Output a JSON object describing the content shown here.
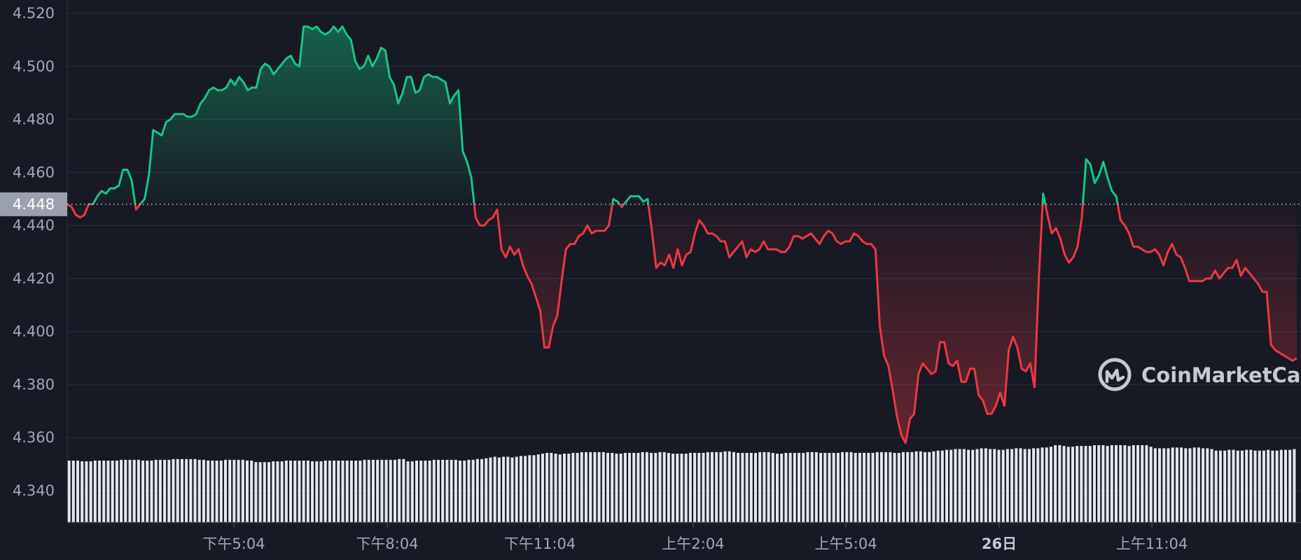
{
  "chart_data": {
    "type": "line",
    "title": "",
    "xlabel": "",
    "ylabel": "",
    "ylim": [
      4.335,
      4.522
    ],
    "grid": true,
    "legend": "none",
    "y_ticks": [
      "4.520",
      "4.500",
      "4.480",
      "4.460",
      "4.440",
      "4.420",
      "4.400",
      "4.380",
      "4.360",
      "4.340"
    ],
    "x_ticks": [
      {
        "label": "下午5:04",
        "bold": false
      },
      {
        "label": "下午8:04",
        "bold": false
      },
      {
        "label": "下午11:04",
        "bold": false
      },
      {
        "label": "上午2:04",
        "bold": false
      },
      {
        "label": "上午5:04",
        "bold": false
      },
      {
        "label": "26日",
        "bold": true
      },
      {
        "label": "上午11:04",
        "bold": false
      }
    ],
    "baseline": {
      "value": 4.448,
      "label": "4.448"
    },
    "colors": {
      "above": "#16c784",
      "below": "#ea3943",
      "volume": "#e6e8ee",
      "background": "#171924"
    },
    "series": [
      {
        "values": [
          4.448,
          4.447,
          4.444,
          4.443,
          4.444,
          4.448,
          4.448,
          4.451,
          4.453,
          4.452,
          4.454,
          4.454,
          4.455,
          4.461,
          4.461,
          4.457,
          4.446,
          4.448,
          4.45,
          4.459,
          4.476,
          4.475,
          4.474,
          4.479,
          4.48,
          4.482,
          4.482,
          4.482,
          4.481,
          4.481,
          4.482,
          4.486,
          4.488,
          4.491,
          4.492,
          4.491,
          4.491,
          4.492,
          4.495,
          4.493,
          4.496,
          4.494,
          4.491,
          4.492,
          4.492,
          4.499,
          4.501,
          4.5,
          4.497,
          4.499,
          4.501,
          4.503,
          4.504,
          4.501,
          4.5,
          4.515,
          4.515,
          4.514,
          4.515,
          4.513,
          4.512,
          4.513,
          4.515,
          4.513,
          4.515,
          4.512,
          4.51,
          4.502,
          4.499,
          4.5,
          4.504,
          4.5,
          4.503,
          4.507,
          4.506,
          4.496,
          4.493,
          4.486,
          4.49,
          4.496,
          4.496,
          4.49,
          4.491,
          4.496,
          4.497,
          4.496,
          4.496,
          4.495,
          4.494,
          4.486,
          4.489,
          4.491,
          4.468,
          4.464,
          4.458,
          4.443,
          4.44,
          4.44,
          4.442,
          4.443,
          4.446,
          4.431,
          4.428,
          4.432,
          4.429,
          4.431,
          4.425,
          4.421,
          4.418,
          4.413,
          4.408,
          4.394,
          4.394,
          4.402,
          4.406,
          4.419,
          4.431,
          4.433,
          4.433,
          4.436,
          4.437,
          4.44,
          4.437,
          4.438,
          4.438,
          4.438,
          4.44,
          4.45,
          4.449,
          4.447,
          4.449,
          4.451,
          4.451,
          4.451,
          4.449,
          4.45,
          4.438,
          4.424,
          4.426,
          4.425,
          4.429,
          4.424,
          4.431,
          4.425,
          4.429,
          4.43,
          4.437,
          4.442,
          4.44,
          4.437,
          4.437,
          4.436,
          4.434,
          4.434,
          4.428,
          4.43,
          4.432,
          4.434,
          4.428,
          4.431,
          4.43,
          4.431,
          4.434,
          4.431,
          4.431,
          4.431,
          4.43,
          4.43,
          4.432,
          4.436,
          4.436,
          4.435,
          4.436,
          4.437,
          4.435,
          4.433,
          4.436,
          4.438,
          4.437,
          4.434,
          4.433,
          4.434,
          4.434,
          4.437,
          4.436,
          4.434,
          4.433,
          4.433,
          4.431,
          4.402,
          4.391,
          4.387,
          4.378,
          4.368,
          4.361,
          4.358,
          4.367,
          4.369,
          4.384,
          4.388,
          4.386,
          4.384,
          4.385,
          4.396,
          4.396,
          4.388,
          4.387,
          4.389,
          4.381,
          4.381,
          4.386,
          4.386,
          4.376,
          4.374,
          4.369,
          4.369,
          4.372,
          4.377,
          4.372,
          4.393,
          4.398,
          4.394,
          4.386,
          4.385,
          4.388,
          4.379,
          4.42,
          4.452,
          4.444,
          4.437,
          4.439,
          4.435,
          4.429,
          4.426,
          4.428,
          4.432,
          4.443,
          4.465,
          4.463,
          4.456,
          4.459,
          4.464,
          4.458,
          4.453,
          4.451,
          4.442,
          4.44,
          4.437,
          4.432,
          4.432,
          4.431,
          4.43,
          4.43,
          4.431,
          4.429,
          4.425,
          4.43,
          4.433,
          4.429,
          4.428,
          4.424,
          4.419,
          4.419,
          4.419,
          4.419,
          4.42,
          4.42,
          4.423,
          4.42,
          4.422,
          4.424,
          4.424,
          4.427,
          4.421,
          4.424,
          4.422,
          4.42,
          4.418,
          4.415,
          4.415,
          4.395,
          4.393,
          4.392,
          4.391,
          4.39,
          4.389,
          4.39
        ]
      }
    ],
    "volume_relative": [
      0.8,
      0.8,
      0.8,
      0.79,
      0.79,
      0.79,
      0.8,
      0.8,
      0.8,
      0.8,
      0.8,
      0.8,
      0.81,
      0.81,
      0.81,
      0.81,
      0.81,
      0.8,
      0.8,
      0.8,
      0.81,
      0.81,
      0.81,
      0.81,
      0.82,
      0.82,
      0.82,
      0.82,
      0.82,
      0.82,
      0.81,
      0.81,
      0.8,
      0.8,
      0.8,
      0.8,
      0.81,
      0.81,
      0.81,
      0.81,
      0.81,
      0.8,
      0.8,
      0.78,
      0.78,
      0.78,
      0.78,
      0.79,
      0.79,
      0.79,
      0.8,
      0.8,
      0.8,
      0.8,
      0.8,
      0.8,
      0.79,
      0.79,
      0.79,
      0.8,
      0.8,
      0.8,
      0.8,
      0.8,
      0.8,
      0.8,
      0.8,
      0.8,
      0.81,
      0.81,
      0.81,
      0.81,
      0.81,
      0.81,
      0.81,
      0.81,
      0.82,
      0.82,
      0.79,
      0.79,
      0.8,
      0.8,
      0.8,
      0.8,
      0.81,
      0.81,
      0.81,
      0.81,
      0.81,
      0.81,
      0.8,
      0.8,
      0.81,
      0.81,
      0.82,
      0.82,
      0.83,
      0.84,
      0.85,
      0.84,
      0.85,
      0.85,
      0.84,
      0.85,
      0.86,
      0.86,
      0.87,
      0.87,
      0.88,
      0.89,
      0.9,
      0.9,
      0.89,
      0.88,
      0.89,
      0.89,
      0.9,
      0.9,
      0.91,
      0.91,
      0.91,
      0.91,
      0.91,
      0.91,
      0.9,
      0.9,
      0.89,
      0.89,
      0.9,
      0.9,
      0.9,
      0.9,
      0.91,
      0.91,
      0.9,
      0.9,
      0.91,
      0.91,
      0.9,
      0.89,
      0.89,
      0.89,
      0.89,
      0.9,
      0.9,
      0.9,
      0.9,
      0.91,
      0.91,
      0.91,
      0.91,
      0.92,
      0.92,
      0.91,
      0.9,
      0.9,
      0.9,
      0.9,
      0.9,
      0.91,
      0.91,
      0.91,
      0.9,
      0.89,
      0.89,
      0.9,
      0.9,
      0.9,
      0.9,
      0.9,
      0.91,
      0.91,
      0.91,
      0.9,
      0.9,
      0.9,
      0.9,
      0.9,
      0.91,
      0.91,
      0.91,
      0.9,
      0.9,
      0.9,
      0.9,
      0.9,
      0.91,
      0.91,
      0.91,
      0.91,
      0.9,
      0.9,
      0.91,
      0.91,
      0.91,
      0.92,
      0.92,
      0.91,
      0.91,
      0.92,
      0.93,
      0.93,
      0.94,
      0.94,
      0.95,
      0.95,
      0.95,
      0.94,
      0.94,
      0.95,
      0.96,
      0.96,
      0.95,
      0.95,
      0.94,
      0.94,
      0.95,
      0.95,
      0.96,
      0.96,
      0.95,
      0.95,
      0.96,
      0.96,
      0.97,
      0.97,
      0.98,
      1.0,
      1.0,
      0.99,
      0.98,
      0.98,
      0.99,
      0.99,
      0.99,
      0.99,
      1.0,
      1.0,
      1.0,
      0.99,
      1.0,
      1.0,
      1.0,
      1.0,
      0.99,
      1.0,
      1.0,
      1.0,
      1.0,
      0.98,
      0.96,
      0.96,
      0.96,
      0.96,
      0.97,
      0.97,
      0.97,
      0.96,
      0.96,
      0.97,
      0.97,
      0.96,
      0.96,
      0.95,
      0.93,
      0.93,
      0.93,
      0.94,
      0.94,
      0.93,
      0.93,
      0.94,
      0.94,
      0.93,
      0.93,
      0.93,
      0.94,
      0.93,
      0.93,
      0.94,
      0.94,
      0.94,
      0.95
    ]
  },
  "watermark": {
    "text": "CoinMarketCap",
    "icon": "coinmarketcap-logo-icon"
  }
}
